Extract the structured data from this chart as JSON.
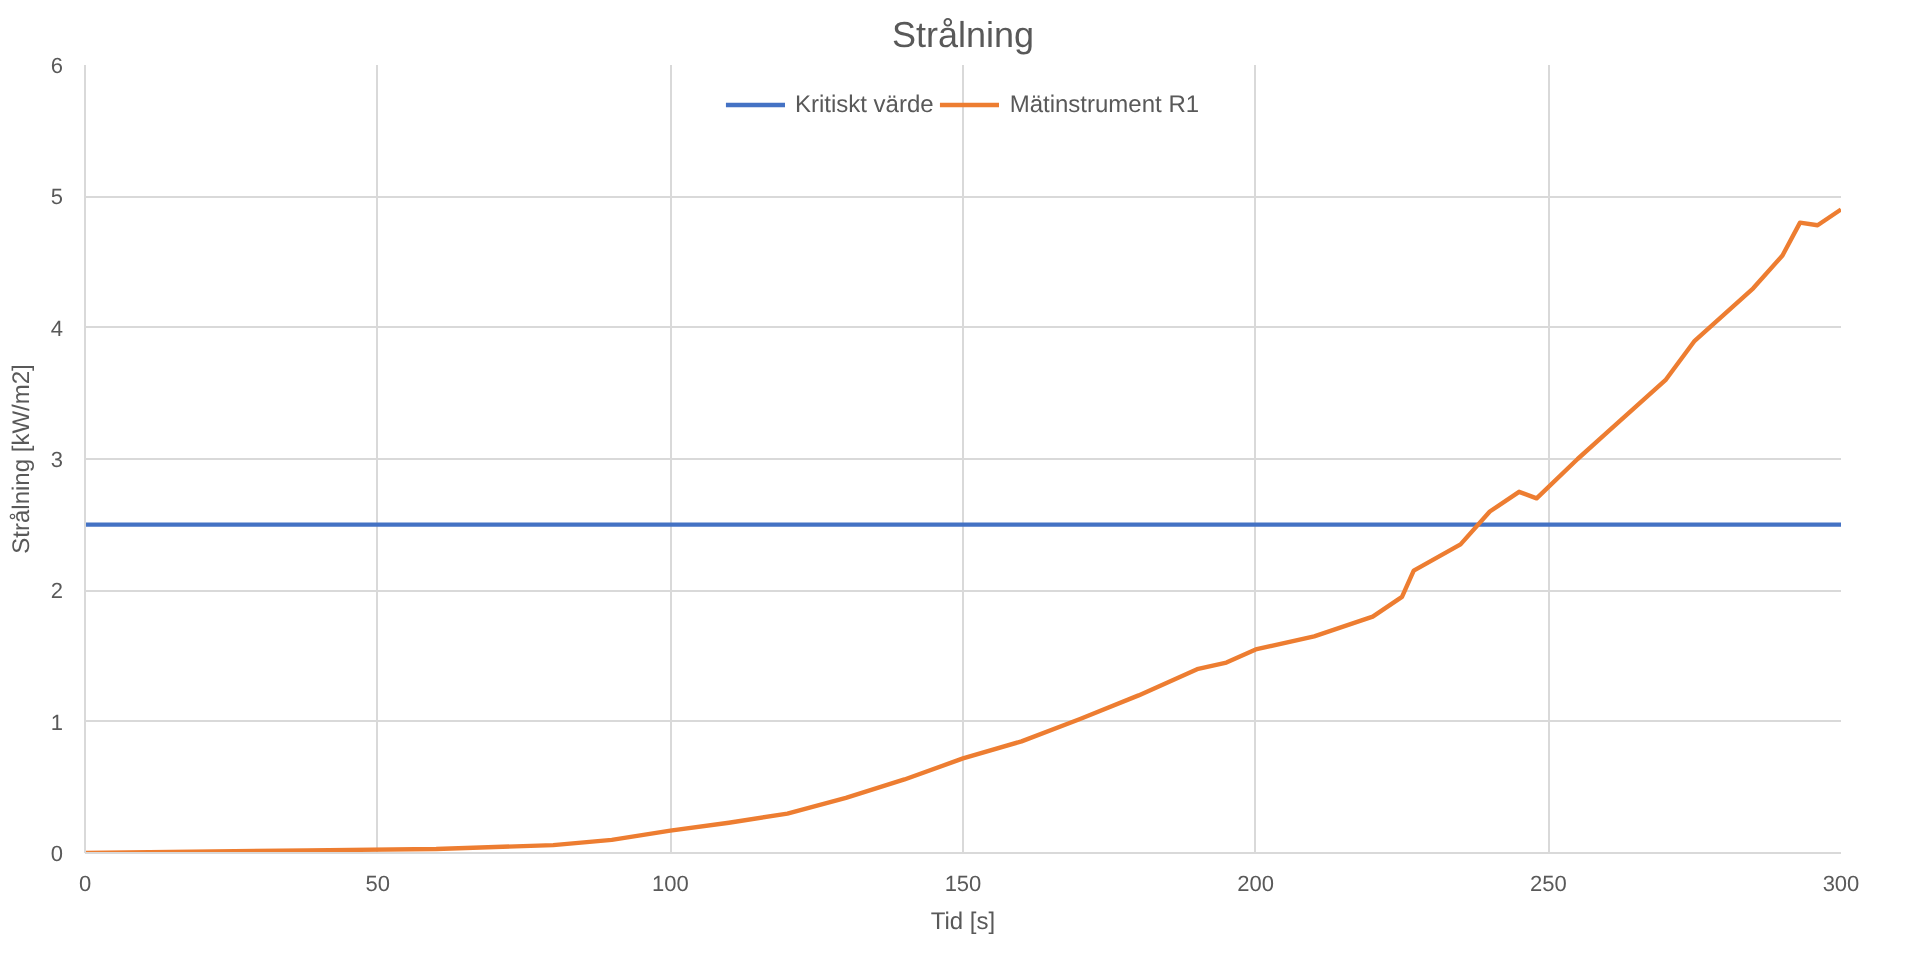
{
  "chart_data": {
    "type": "line",
    "title": "Strålning",
    "xlabel": "Tid [s]",
    "ylabel": "Strålning [kW/m2]",
    "xlim": [
      0,
      300
    ],
    "xticks": [
      0,
      50,
      100,
      150,
      200,
      250,
      300
    ],
    "ylim": [
      0,
      6
    ],
    "yticks": [
      0,
      1,
      2,
      3,
      4,
      5,
      6
    ],
    "grid": true,
    "legend": "top",
    "marker": "none",
    "line_style": "solid",
    "series": [
      {
        "name": "Kritiskt värde",
        "color": "#4472c4",
        "x": [
          0,
          300
        ],
        "values": [
          2.5,
          2.5
        ]
      },
      {
        "name": "Mätinstrument R1",
        "color": "#ed7d31",
        "x": [
          0,
          38,
          60,
          80,
          90,
          100,
          110,
          120,
          130,
          140,
          150,
          160,
          170,
          180,
          190,
          195,
          200,
          210,
          220,
          225,
          227,
          235,
          240,
          245,
          248,
          255,
          260,
          270,
          275,
          280,
          285,
          290,
          293,
          296,
          300
        ],
        "values": [
          0,
          0.02,
          0.03,
          0.06,
          0.1,
          0.17,
          0.23,
          0.3,
          0.42,
          0.56,
          0.72,
          0.85,
          1.02,
          1.2,
          1.4,
          1.45,
          1.55,
          1.65,
          1.8,
          1.95,
          2.15,
          2.35,
          2.6,
          2.75,
          2.7,
          3.0,
          3.2,
          3.6,
          3.9,
          4.1,
          4.3,
          4.55,
          4.8,
          4.78,
          4.9
        ]
      }
    ]
  }
}
